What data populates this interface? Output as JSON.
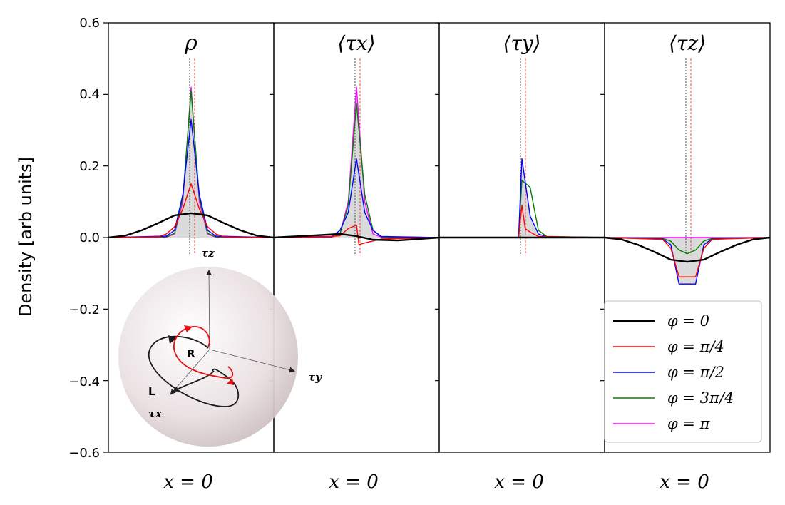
{
  "chart_data": {
    "type": "line",
    "ylabel": "Density [arb units]",
    "ylim": [
      -0.6,
      0.6
    ],
    "yticks": [
      -0.6,
      -0.4,
      -0.2,
      0.0,
      0.2,
      0.4,
      0.6
    ],
    "ytick_labels": [
      "−0.6",
      "−0.4",
      "−0.2",
      "0.0",
      "0.2",
      "0.4",
      "0.6"
    ],
    "xlim": [
      -10,
      10
    ],
    "xlabel_text": "x = 0",
    "panels": [
      {
        "title": "ρ",
        "series": [
          {
            "name": "φ = 0",
            "x": [
              -10,
              -8,
              -6,
              -4,
              -2,
              0,
              2,
              4,
              6,
              8,
              10
            ],
            "y": [
              0.0,
              0.005,
              0.02,
              0.04,
              0.062,
              0.068,
              0.062,
              0.04,
              0.02,
              0.005,
              0.0
            ]
          },
          {
            "name": "φ = π/4",
            "x": [
              -10,
              -4,
              -3,
              -2,
              -1,
              0,
              1,
              2,
              3,
              4,
              10
            ],
            "y": [
              0.0,
              0.002,
              0.01,
              0.03,
              0.08,
              0.15,
              0.08,
              0.03,
              0.01,
              0.002,
              0.0
            ]
          },
          {
            "name": "φ = π/2",
            "x": [
              -10,
              -3,
              -2,
              -1,
              0,
              1,
              2,
              3,
              10
            ],
            "y": [
              0.0,
              0.004,
              0.02,
              0.12,
              0.33,
              0.12,
              0.02,
              0.004,
              0.0
            ]
          },
          {
            "name": "φ = 3π/4",
            "x": [
              -10,
              -3,
              -2,
              -1,
              0,
              1,
              2,
              3,
              10
            ],
            "y": [
              0.0,
              0.002,
              0.012,
              0.11,
              0.41,
              0.11,
              0.012,
              0.002,
              0.0
            ]
          },
          {
            "name": "φ = π",
            "x": [
              -10,
              -3,
              -2,
              -1,
              0,
              1,
              2,
              3,
              10
            ],
            "y": [
              0.0,
              0.001,
              0.01,
              0.1,
              0.42,
              0.1,
              0.01,
              0.001,
              0.0
            ]
          }
        ]
      },
      {
        "title": "⟨τx⟩",
        "series": [
          {
            "name": "φ = 0",
            "x": [
              -10,
              -5,
              -2,
              0,
              2,
              5,
              10
            ],
            "y": [
              0.0,
              0.006,
              0.01,
              0.004,
              -0.006,
              -0.008,
              0.0
            ]
          },
          {
            "name": "φ = π/4",
            "x": [
              -10,
              -4,
              -2,
              -1,
              0,
              0.3,
              1,
              3,
              10
            ],
            "y": [
              0.0,
              0.002,
              0.005,
              0.025,
              0.035,
              -0.02,
              -0.015,
              -0.004,
              0.0
            ]
          },
          {
            "name": "φ = π/2",
            "x": [
              -10,
              -3,
              -2,
              -1,
              0,
              1,
              2,
              3,
              10
            ],
            "y": [
              0.0,
              0.003,
              0.02,
              0.07,
              0.22,
              0.07,
              0.02,
              0.003,
              0.0
            ]
          },
          {
            "name": "φ = 3π/4",
            "x": [
              -10,
              -3,
              -2,
              -1,
              0,
              1,
              2,
              3,
              10
            ],
            "y": [
              0.0,
              0.002,
              0.01,
              0.09,
              0.375,
              0.12,
              0.02,
              0.002,
              0.0
            ]
          },
          {
            "name": "φ = π",
            "x": [
              -10,
              -3,
              -2,
              -1,
              0,
              1,
              2,
              3,
              10
            ],
            "y": [
              0.0,
              0.001,
              0.01,
              0.1,
              0.42,
              0.1,
              0.01,
              0.001,
              0.0
            ]
          }
        ]
      },
      {
        "title": "⟨τy⟩",
        "series": [
          {
            "name": "φ = 0",
            "x": [
              -10,
              10
            ],
            "y": [
              0.0,
              0.0
            ]
          },
          {
            "name": "φ = π/4",
            "x": [
              -10,
              -1,
              -0.4,
              0,
              0.4,
              1,
              2,
              10
            ],
            "y": [
              0.0,
              0.0,
              0.0,
              0.09,
              0.025,
              0.015,
              0.003,
              0.0
            ]
          },
          {
            "name": "φ = π/2",
            "x": [
              -10,
              -1,
              -0.4,
              0,
              1,
              2,
              3,
              10
            ],
            "y": [
              0.0,
              0.0,
              0.0,
              0.22,
              0.06,
              0.01,
              0.002,
              0.0
            ]
          },
          {
            "name": "φ = 3π/4",
            "x": [
              -10,
              -1,
              -0.4,
              0,
              1,
              2,
              3,
              10
            ],
            "y": [
              0.0,
              0.0,
              0.0,
              0.16,
              0.14,
              0.02,
              0.003,
              0.0
            ]
          },
          {
            "name": "φ = π",
            "x": [
              -10,
              10
            ],
            "y": [
              0.0,
              0.0
            ]
          }
        ]
      },
      {
        "title": "⟨τz⟩",
        "series": [
          {
            "name": "φ = 0",
            "x": [
              -10,
              -8,
              -6,
              -4,
              -2,
              0,
              2,
              4,
              6,
              8,
              10
            ],
            "y": [
              0.0,
              -0.005,
              -0.02,
              -0.04,
              -0.062,
              -0.068,
              -0.062,
              -0.04,
              -0.02,
              -0.005,
              0.0
            ]
          },
          {
            "name": "φ = π/4",
            "x": [
              -10,
              -3,
              -2,
              -1,
              1,
              2,
              3,
              10
            ],
            "y": [
              0.0,
              -0.005,
              -0.03,
              -0.11,
              -0.11,
              -0.03,
              -0.005,
              0.0
            ]
          },
          {
            "name": "φ = π/2",
            "x": [
              -10,
              -3,
              -2,
              -1,
              1,
              2,
              3,
              10
            ],
            "y": [
              0.0,
              -0.004,
              -0.02,
              -0.13,
              -0.13,
              -0.02,
              -0.004,
              0.0
            ]
          },
          {
            "name": "φ = 3π/4",
            "x": [
              -10,
              -3,
              -2,
              -1,
              0,
              1,
              2,
              3,
              10
            ],
            "y": [
              0.0,
              -0.002,
              -0.01,
              -0.035,
              -0.045,
              -0.035,
              -0.01,
              -0.002,
              0.0
            ]
          },
          {
            "name": "φ = π",
            "x": [
              -10,
              10
            ],
            "y": [
              0.0,
              0.0
            ]
          }
        ]
      }
    ],
    "legend": {
      "location": "lower-right of last panel",
      "entries": [
        {
          "label": "φ = 0",
          "color": "#000000"
        },
        {
          "label": "φ = π/4",
          "color": "#ff0000"
        },
        {
          "label": "φ = π/2",
          "color": "#0000ff"
        },
        {
          "label": "φ = 3π/4",
          "color": "#008000"
        },
        {
          "label": "φ = π",
          "color": "#ff00ff"
        }
      ]
    },
    "inset_bloch_sphere": {
      "axis_labels": [
        "τz",
        "τy",
        "τx"
      ],
      "point_labels": [
        "R",
        "L"
      ]
    }
  }
}
